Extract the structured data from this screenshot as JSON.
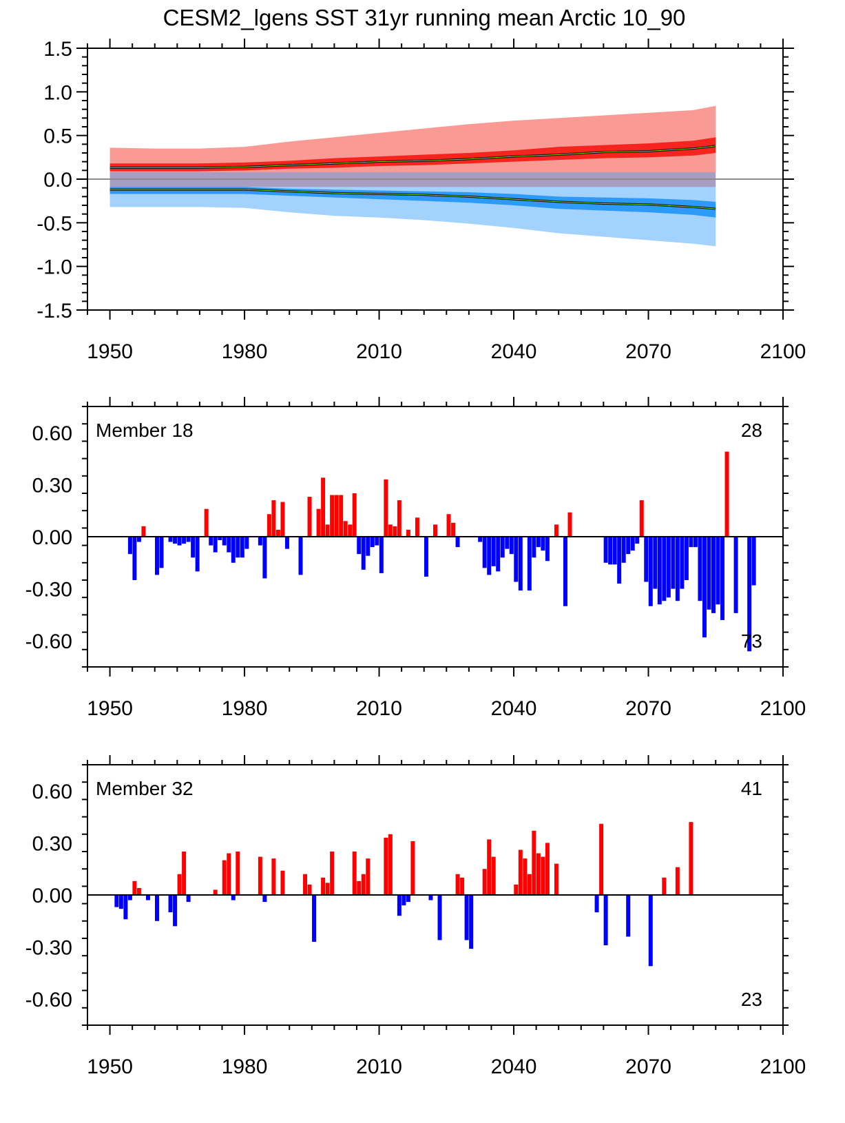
{
  "title": "CESM2_lgens SST 31yr running mean Arctic 10_90",
  "colors": {
    "red_outer": "#fa9a94",
    "red_inner": "#f5241e",
    "blue_outer": "#a3d2ff",
    "blue_inner": "#2e9af8",
    "overlap": "#a89ec4",
    "bar_pos": "#ff0000",
    "bar_neg": "#0000ff",
    "zero_line_top": "#8c8c8c",
    "mean_line": "#000000",
    "mean_line_inner": "#7be600"
  },
  "chart_data": [
    {
      "type": "area",
      "name": "ensemble-spread",
      "xlim": [
        1945,
        2100
      ],
      "ylim": [
        -1.5,
        1.5
      ],
      "xticks": [
        1950,
        1980,
        2010,
        2040,
        2070,
        2100
      ],
      "yticks": [
        1.5,
        1.0,
        0.5,
        0.0,
        -0.5,
        -1.0,
        -1.5
      ],
      "ytick_labels": [
        "1.5",
        "1.0",
        "0.5",
        "0.0",
        "-0.5",
        "-1.0",
        "-1.5"
      ],
      "x": [
        1950,
        1960,
        1970,
        1980,
        1990,
        2000,
        2010,
        2020,
        2030,
        2040,
        2050,
        2060,
        2070,
        2080,
        2085
      ],
      "series": [
        {
          "name": "positive mean",
          "values": [
            0.13,
            0.13,
            0.13,
            0.14,
            0.16,
            0.18,
            0.2,
            0.21,
            0.23,
            0.26,
            0.28,
            0.31,
            0.32,
            0.35,
            0.38
          ]
        },
        {
          "name": "positive inner upper",
          "values": [
            0.18,
            0.18,
            0.18,
            0.19,
            0.21,
            0.24,
            0.26,
            0.28,
            0.3,
            0.33,
            0.37,
            0.39,
            0.41,
            0.44,
            0.48
          ]
        },
        {
          "name": "positive inner lower",
          "values": [
            0.09,
            0.09,
            0.09,
            0.1,
            0.12,
            0.13,
            0.15,
            0.16,
            0.18,
            0.2,
            0.22,
            0.24,
            0.25,
            0.27,
            0.3
          ]
        },
        {
          "name": "positive outer upper",
          "values": [
            0.36,
            0.35,
            0.35,
            0.37,
            0.43,
            0.48,
            0.53,
            0.58,
            0.63,
            0.67,
            0.7,
            0.73,
            0.76,
            0.79,
            0.84
          ]
        },
        {
          "name": "positive outer lower",
          "values": [
            0.0,
            0.0,
            0.0,
            0.0,
            0.0,
            0.0,
            0.0,
            0.0,
            0.0,
            0.01,
            0.02,
            0.04,
            0.06,
            0.07,
            0.08
          ]
        },
        {
          "name": "negative mean",
          "values": [
            -0.12,
            -0.12,
            -0.12,
            -0.12,
            -0.14,
            -0.16,
            -0.17,
            -0.18,
            -0.2,
            -0.23,
            -0.26,
            -0.28,
            -0.29,
            -0.32,
            -0.34
          ]
        },
        {
          "name": "negative inner upper",
          "values": [
            -0.09,
            -0.09,
            -0.09,
            -0.09,
            -0.11,
            -0.12,
            -0.13,
            -0.14,
            -0.15,
            -0.17,
            -0.2,
            -0.21,
            -0.22,
            -0.24,
            -0.26
          ]
        },
        {
          "name": "negative inner lower",
          "values": [
            -0.17,
            -0.17,
            -0.17,
            -0.17,
            -0.19,
            -0.21,
            -0.23,
            -0.25,
            -0.27,
            -0.3,
            -0.34,
            -0.36,
            -0.38,
            -0.41,
            -0.44
          ]
        },
        {
          "name": "negative outer upper",
          "values": [
            0.0,
            0.0,
            0.0,
            0.0,
            0.0,
            0.0,
            0.0,
            0.0,
            0.0,
            0.0,
            -0.01,
            -0.03,
            -0.05,
            -0.07,
            -0.09
          ]
        },
        {
          "name": "negative outer lower",
          "values": [
            -0.32,
            -0.32,
            -0.32,
            -0.33,
            -0.38,
            -0.42,
            -0.44,
            -0.47,
            -0.51,
            -0.56,
            -0.62,
            -0.66,
            -0.7,
            -0.74,
            -0.77
          ]
        }
      ]
    },
    {
      "type": "bar",
      "name": "member-18",
      "label": "Member 18",
      "count_pos": "28",
      "count_neg": "73",
      "xlim": [
        1945,
        2100
      ],
      "ylim": [
        -0.75,
        0.75
      ],
      "xticks": [
        1950,
        1980,
        2010,
        2040,
        2070,
        2100
      ],
      "yticks": [
        0.6,
        0.3,
        0.0,
        -0.3,
        -0.6
      ],
      "ytick_labels": [
        "0.60",
        "0.30",
        "0.00",
        "-0.30",
        "-0.60"
      ],
      "years_start": 1950,
      "values": [
        0.0,
        0.0,
        0.0,
        0.0,
        -0.1,
        -0.25,
        -0.03,
        0.06,
        0.0,
        0.0,
        -0.22,
        -0.18,
        0.0,
        -0.03,
        -0.04,
        -0.05,
        -0.04,
        -0.03,
        -0.12,
        -0.2,
        0.0,
        0.16,
        -0.05,
        -0.09,
        -0.02,
        -0.05,
        -0.09,
        -0.15,
        -0.12,
        -0.12,
        -0.07,
        0.0,
        0.0,
        -0.05,
        -0.24,
        0.13,
        0.21,
        0.04,
        0.2,
        -0.07,
        0.0,
        0.0,
        -0.22,
        0.0,
        0.23,
        0.0,
        0.16,
        0.34,
        0.07,
        0.24,
        0.24,
        0.24,
        0.09,
        0.07,
        0.25,
        -0.1,
        -0.19,
        -0.11,
        -0.06,
        -0.05,
        -0.21,
        0.33,
        0.07,
        0.06,
        0.21,
        0.0,
        0.04,
        0.0,
        0.11,
        0.0,
        -0.23,
        0.0,
        0.07,
        0.0,
        0.0,
        0.13,
        0.08,
        -0.06,
        0.0,
        0.0,
        0.0,
        0.0,
        -0.03,
        -0.18,
        -0.22,
        -0.17,
        -0.2,
        -0.12,
        -0.07,
        -0.1,
        -0.26,
        -0.31,
        0.0,
        -0.31,
        -0.12,
        -0.06,
        -0.08,
        -0.14,
        0.0,
        0.07,
        0.0,
        -0.4,
        0.14,
        0.0,
        0.0,
        0.0,
        0.0,
        0.0,
        0.0,
        0.0,
        -0.15,
        -0.16,
        -0.16,
        -0.27,
        -0.15,
        -0.1,
        -0.08,
        -0.04,
        0.21,
        -0.26,
        -0.4,
        -0.3,
        -0.39,
        -0.37,
        -0.35,
        -0.3,
        -0.37,
        -0.3,
        -0.25,
        -0.06,
        -0.06,
        -0.37,
        -0.58,
        -0.42,
        -0.44,
        -0.39,
        -0.48,
        0.49,
        0.0,
        -0.44,
        0.0,
        0.0,
        -0.66,
        -0.28
      ]
    },
    {
      "type": "bar",
      "name": "member-32",
      "label": "Member 32",
      "count_pos": "41",
      "count_neg": "23",
      "xlim": [
        1945,
        2100
      ],
      "ylim": [
        -0.75,
        0.75
      ],
      "xticks": [
        1950,
        1980,
        2010,
        2040,
        2070,
        2100
      ],
      "yticks": [
        0.6,
        0.3,
        0.0,
        -0.3,
        -0.6
      ],
      "ytick_labels": [
        "0.60",
        "0.30",
        "0.00",
        "-0.30",
        "-0.60"
      ],
      "years_start": 1950,
      "values": [
        0.0,
        -0.07,
        -0.08,
        -0.14,
        -0.03,
        0.08,
        0.04,
        0.0,
        -0.03,
        0.0,
        -0.15,
        0.0,
        0.0,
        -0.1,
        -0.18,
        0.12,
        0.25,
        -0.04,
        0.0,
        0.0,
        0.0,
        0.0,
        0.0,
        0.03,
        0.0,
        0.2,
        0.24,
        -0.03,
        0.25,
        0.0,
        0.0,
        0.0,
        0.0,
        0.22,
        -0.04,
        0.0,
        0.21,
        0.0,
        0.14,
        0.0,
        0.0,
        0.0,
        0.0,
        0.12,
        0.06,
        -0.27,
        0.0,
        0.1,
        0.07,
        0.25,
        0.0,
        0.0,
        0.0,
        0.0,
        0.25,
        0.08,
        0.12,
        0.21,
        0.0,
        0.0,
        0.0,
        0.33,
        0.35,
        0.0,
        -0.12,
        -0.06,
        -0.04,
        0.31,
        0.0,
        0.0,
        0.0,
        -0.03,
        0.0,
        -0.26,
        0.0,
        0.0,
        0.0,
        0.12,
        0.1,
        -0.26,
        -0.31,
        0.0,
        0.0,
        0.15,
        0.32,
        0.22,
        0.0,
        0.0,
        0.0,
        0.0,
        0.06,
        0.26,
        0.21,
        0.12,
        0.37,
        0.24,
        0.22,
        0.3,
        0.0,
        0.18,
        0.0,
        0.0,
        0.0,
        0.0,
        0.0,
        0.0,
        0.0,
        0.0,
        -0.1,
        0.41,
        -0.29,
        0.0,
        0.0,
        0.0,
        0.0,
        -0.24,
        0.0,
        0.0,
        0.0,
        0.0,
        -0.41,
        0.0,
        0.0,
        0.1,
        0.0,
        0.0,
        0.16,
        0.0,
        0.0,
        0.42
      ]
    }
  ]
}
